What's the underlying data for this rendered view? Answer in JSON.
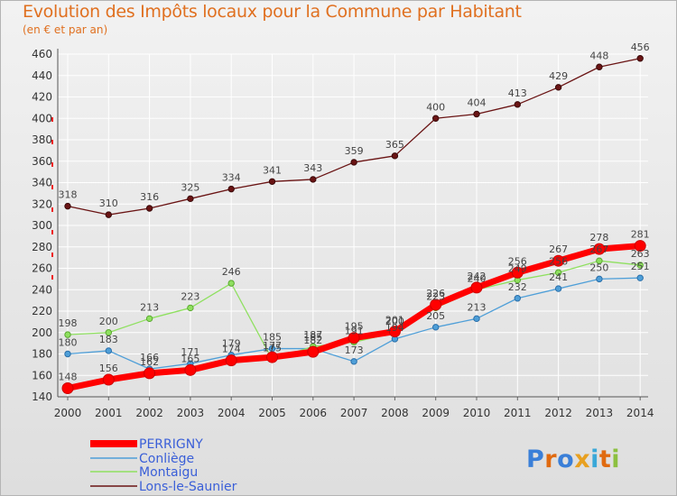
{
  "title": "Evolution des Impôts locaux pour la Commune par Habitant",
  "subtitle": "(en € et par an)",
  "logo_text": "Proxiti",
  "chart_data": {
    "type": "line",
    "title": "Evolution des Impôts locaux pour la Commune par Habitant",
    "subtitle": "(en € et par an)",
    "xlabel": "",
    "ylabel": "",
    "x": [
      "2000",
      "2001",
      "2002",
      "2003",
      "2004",
      "2005",
      "2006",
      "2007",
      "2008",
      "2009",
      "2010",
      "2011",
      "2012",
      "2013",
      "2014"
    ],
    "ylim": [
      140,
      460
    ],
    "yticks": [
      140,
      160,
      180,
      200,
      220,
      240,
      260,
      280,
      300,
      320,
      340,
      360,
      380,
      400,
      420,
      440,
      460
    ],
    "grid": true,
    "legend_position": "bottom-left",
    "series": [
      {
        "name": "PERRIGNY",
        "color": "#ff0000",
        "values": [
          148,
          156,
          162,
          165,
          174,
          177,
          182,
          195,
          201,
          226,
          242,
          256,
          267,
          278,
          281
        ]
      },
      {
        "name": "Conliège",
        "color": "#4f9fd8",
        "values": [
          180,
          183,
          166,
          171,
          179,
          185,
          185,
          173,
          194,
          205,
          213,
          232,
          241,
          250,
          251
        ]
      },
      {
        "name": "Montaigu",
        "color": "#8fe060",
        "values": [
          198,
          200,
          213,
          223,
          246,
          175,
          187,
          191,
          200,
          223,
          240,
          249,
          256,
          267,
          263
        ]
      },
      {
        "name": "Lons-le-Saunier",
        "color": "#6a1414",
        "values": [
          318,
          310,
          316,
          325,
          334,
          341,
          343,
          359,
          365,
          400,
          404,
          413,
          429,
          448,
          456
        ]
      }
    ]
  }
}
